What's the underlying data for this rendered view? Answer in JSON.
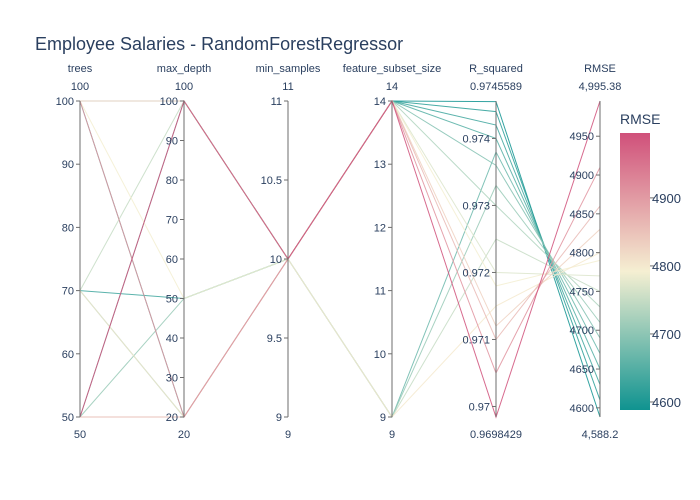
{
  "chart_data": {
    "type": "parallel_coordinates",
    "title": "Employee Salaries - RandomForestRegressor",
    "dimensions": [
      {
        "label": "trees",
        "range": [
          50,
          100
        ],
        "range_labels": {
          "min": "50",
          "max": "100"
        },
        "ticks": [
          50,
          60,
          70,
          80,
          90,
          100
        ],
        "tick_labels": [
          "50",
          "60",
          "70",
          "80",
          "90",
          "100"
        ]
      },
      {
        "label": "max_depth",
        "range": [
          20,
          100
        ],
        "range_labels": {
          "min": "20",
          "max": "100"
        },
        "ticks": [
          20,
          30,
          40,
          50,
          60,
          70,
          80,
          90,
          100
        ],
        "tick_labels": [
          "20",
          "30",
          "40",
          "50",
          "60",
          "70",
          "80",
          "90",
          "100"
        ]
      },
      {
        "label": "min_samples",
        "range": [
          9,
          11
        ],
        "range_labels": {
          "min": "9",
          "max": "11"
        },
        "ticks": [
          9,
          9.5,
          10,
          10.5,
          11
        ],
        "tick_labels": [
          "9",
          "9.5",
          "10",
          "10.5",
          "11"
        ]
      },
      {
        "label": "feature_subset_size",
        "range": [
          9,
          14
        ],
        "range_labels": {
          "min": "9",
          "max": "14"
        },
        "ticks": [
          9,
          10,
          11,
          12,
          13,
          14
        ],
        "tick_labels": [
          "9",
          "10",
          "11",
          "12",
          "13",
          "14"
        ]
      },
      {
        "label": "R_squared",
        "range": [
          0.9698429,
          0.9745589
        ],
        "range_labels": {
          "min": "0.9698429",
          "max": "0.9745589"
        },
        "ticks": [
          0.97,
          0.971,
          0.972,
          0.973,
          0.974
        ],
        "tick_labels": [
          "0.97",
          "0.971",
          "0.972",
          "0.973",
          "0.974"
        ]
      },
      {
        "label": "RMSE",
        "range": [
          4588.2,
          4995.38
        ],
        "range_labels": {
          "min": "4,588.2",
          "max": "4,995.38"
        },
        "ticks": [
          4600,
          4650,
          4700,
          4750,
          4800,
          4850,
          4900,
          4950
        ],
        "tick_labels": [
          "4600",
          "4650",
          "4700",
          "4750",
          "4800",
          "4850",
          "4900",
          "4950"
        ]
      }
    ],
    "lines": [
      [
        100,
        100,
        10,
        14,
        0.97455,
        4588.2
      ],
      [
        100,
        100,
        10,
        14,
        0.9744,
        4610
      ],
      [
        70,
        50,
        10,
        14,
        0.9742,
        4630
      ],
      [
        100,
        20,
        10,
        14,
        0.974,
        4650
      ],
      [
        50,
        100,
        10,
        9,
        0.9738,
        4670
      ],
      [
        70,
        20,
        10,
        14,
        0.9736,
        4690
      ],
      [
        50,
        50,
        10,
        9,
        0.9733,
        4710
      ],
      [
        100,
        100,
        10,
        14,
        0.973,
        4730
      ],
      [
        70,
        100,
        10,
        9,
        0.9725,
        4750
      ],
      [
        50,
        20,
        10,
        14,
        0.972,
        4770
      ],
      [
        100,
        50,
        10,
        14,
        0.9718,
        4790
      ],
      [
        70,
        20,
        10,
        9,
        0.9715,
        4800
      ],
      [
        100,
        100,
        10,
        14,
        0.9712,
        4830
      ],
      [
        50,
        20,
        10,
        14,
        0.971,
        4860
      ],
      [
        100,
        20,
        10,
        14,
        0.9705,
        4910
      ],
      [
        50,
        100,
        10,
        14,
        0.96984,
        4995.38
      ]
    ],
    "colorbar": {
      "title": "RMSE",
      "ticks": [
        4600,
        4700,
        4800,
        4900
      ],
      "tick_labels": [
        "4600",
        "4700",
        "4800",
        "4900"
      ],
      "range": [
        4588.2,
        4995.38
      ],
      "colorscale": [
        "#0f9390",
        "#f5efd2",
        "#d0507a"
      ]
    }
  }
}
